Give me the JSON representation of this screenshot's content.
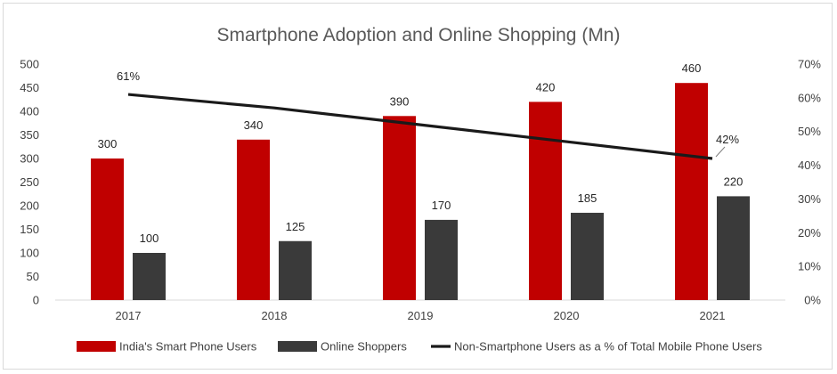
{
  "chart_data": {
    "type": "bar",
    "title": "Smartphone Adoption and Online Shopping (Mn)",
    "categories": [
      "2017",
      "2018",
      "2019",
      "2020",
      "2021"
    ],
    "series": [
      {
        "name": "India's Smart Phone Users",
        "type": "bar",
        "axis": "left",
        "color": "#c00000",
        "values": [
          300,
          340,
          390,
          420,
          460
        ],
        "labels": [
          "300",
          "340",
          "390",
          "420",
          "460"
        ]
      },
      {
        "name": "Online Shoppers",
        "type": "bar",
        "axis": "left",
        "color": "#3a3a3a",
        "values": [
          100,
          125,
          170,
          185,
          220
        ],
        "labels": [
          "100",
          "125",
          "170",
          "185",
          "220"
        ]
      },
      {
        "name": "Non-Smartphone Users as a % of Total Mobile Phone Users",
        "type": "line",
        "axis": "right",
        "color": "#1a1a1a",
        "values": [
          61,
          57,
          52,
          47,
          42
        ],
        "labels": [
          "61%",
          "",
          "",
          "",
          "42%"
        ]
      }
    ],
    "y_left": {
      "min": 0,
      "max": 500,
      "step": 50,
      "tick_labels": [
        "0",
        "50",
        "100",
        "150",
        "200",
        "250",
        "300",
        "350",
        "400",
        "450",
        "500"
      ]
    },
    "y_right": {
      "min": 0,
      "max": 70,
      "step": 10,
      "tick_labels": [
        "0%",
        "10%",
        "20%",
        "30%",
        "40%",
        "50%",
        "60%",
        "70%"
      ]
    },
    "grid": false,
    "legend": "bottom"
  }
}
